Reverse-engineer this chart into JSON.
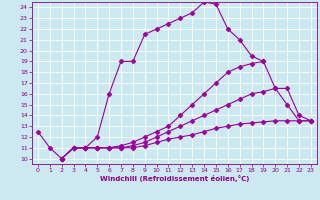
{
  "bg_color": "#cce8f0",
  "grid_color": "#ffffff",
  "line_color": "#990099",
  "xlabel": "Windchill (Refroidissement éolien,°C)",
  "xlim": [
    -0.5,
    23.5
  ],
  "ylim": [
    9.5,
    24.5
  ],
  "xticks": [
    0,
    1,
    2,
    3,
    4,
    5,
    6,
    7,
    8,
    9,
    10,
    11,
    12,
    13,
    14,
    15,
    16,
    17,
    18,
    19,
    20,
    21,
    22,
    23
  ],
  "yticks": [
    10,
    11,
    12,
    13,
    14,
    15,
    16,
    17,
    18,
    19,
    20,
    21,
    22,
    23,
    24
  ],
  "lines": [
    {
      "x": [
        0,
        1,
        2,
        3,
        4,
        5,
        6,
        7,
        8,
        9,
        10,
        11,
        12,
        13,
        14,
        15,
        16,
        17,
        18,
        19
      ],
      "y": [
        12.5,
        11.0,
        10.0,
        11.0,
        11.0,
        12.0,
        16.0,
        19.0,
        19.0,
        21.5,
        22.0,
        22.5,
        23.0,
        23.5,
        24.5,
        24.3,
        22.0,
        21.0,
        19.5,
        19.0
      ],
      "marker": "D",
      "markersize": 2.5,
      "lw": 0.8
    },
    {
      "x": [
        2,
        3,
        4,
        5,
        6,
        7,
        8,
        9,
        10,
        11,
        12,
        13,
        14,
        15,
        16,
        17,
        18,
        19,
        20,
        21,
        22,
        23
      ],
      "y": [
        10.0,
        11.0,
        11.0,
        11.0,
        11.0,
        11.2,
        11.5,
        12.0,
        12.5,
        13.0,
        14.0,
        15.0,
        16.0,
        17.0,
        18.0,
        18.5,
        18.8,
        19.0,
        16.5,
        15.0,
        13.5,
        13.5
      ],
      "marker": "D",
      "markersize": 2.5,
      "lw": 0.8
    },
    {
      "x": [
        2,
        3,
        4,
        5,
        6,
        7,
        8,
        9,
        10,
        11,
        12,
        13,
        14,
        15,
        16,
        17,
        18,
        19,
        20,
        21,
        22,
        23
      ],
      "y": [
        10.0,
        11.0,
        11.0,
        11.0,
        11.0,
        11.0,
        11.2,
        11.5,
        12.0,
        12.5,
        13.0,
        13.5,
        14.0,
        14.5,
        15.0,
        15.5,
        16.0,
        16.2,
        16.5,
        16.5,
        14.0,
        13.5
      ],
      "marker": "D",
      "markersize": 2.5,
      "lw": 0.8
    },
    {
      "x": [
        2,
        3,
        4,
        5,
        6,
        7,
        8,
        9,
        10,
        11,
        12,
        13,
        14,
        15,
        16,
        17,
        18,
        19,
        20,
        21,
        22,
        23
      ],
      "y": [
        10.0,
        11.0,
        11.0,
        11.0,
        11.0,
        11.0,
        11.0,
        11.2,
        11.5,
        11.8,
        12.0,
        12.2,
        12.5,
        12.8,
        13.0,
        13.2,
        13.3,
        13.4,
        13.5,
        13.5,
        13.5,
        13.5
      ],
      "marker": "D",
      "markersize": 2.5,
      "lw": 0.8
    }
  ]
}
